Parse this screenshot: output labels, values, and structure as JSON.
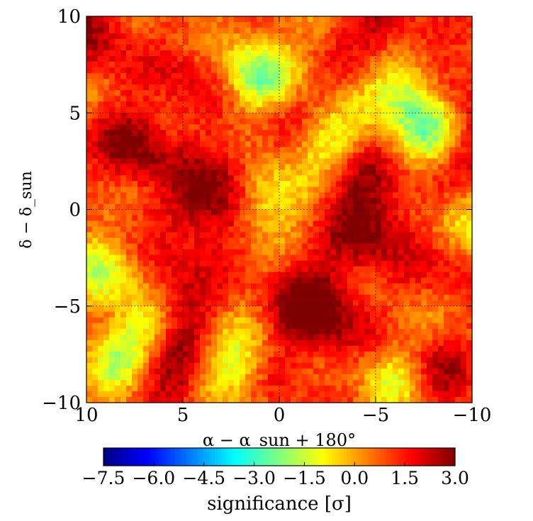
{
  "chart_data": [
    {
      "type": "heatmap",
      "title": "",
      "xlabel": "α − α_sun + 180°",
      "ylabel": "δ − δ_sun",
      "x_ticks": [
        10,
        5,
        0,
        -5,
        -10
      ],
      "y_ticks": [
        10,
        5,
        0,
        -5,
        -10
      ],
      "x_tick_labels": [
        "10",
        "5",
        "0",
        "−5",
        "−10"
      ],
      "y_tick_labels": [
        "10",
        "5",
        "0",
        "−5",
        "−10"
      ],
      "xlim": [
        10,
        -10
      ],
      "ylim": [
        -10,
        10
      ],
      "grid": true,
      "colormap": "jet",
      "color_range": [
        -7.5,
        3.0
      ],
      "hotspots": [
        {
          "x": 9.8,
          "y": 9.0,
          "value": 2.6
        },
        {
          "x": 7.5,
          "y": 3.2,
          "value": 3.0
        },
        {
          "x": 3.8,
          "y": 0.2,
          "value": 3.0
        },
        {
          "x": 2.2,
          "y": 1.9,
          "value": 2.1
        },
        {
          "x": 5.4,
          "y": -4.6,
          "value": 3.0
        },
        {
          "x": 5.6,
          "y": -8.2,
          "value": 2.9
        },
        {
          "x": 9.0,
          "y": -5.7,
          "value": 1.8
        },
        {
          "x": -4.8,
          "y": -1.1,
          "value": 3.0
        },
        {
          "x": -4.0,
          "y": 1.8,
          "value": 2.3
        },
        {
          "x": -2.4,
          "y": -5.7,
          "value": 2.6
        },
        {
          "x": -1.4,
          "y": -4.5,
          "value": 2.4
        },
        {
          "x": -5.3,
          "y": 9.2,
          "value": 2.4
        },
        {
          "x": -8.9,
          "y": 6.3,
          "value": 2.4
        },
        {
          "x": -9.6,
          "y": 2.6,
          "value": 2.1
        },
        {
          "x": -8.0,
          "y": -8.6,
          "value": 2.7
        },
        {
          "x": -1.0,
          "y": 4.8,
          "value": 1.7
        },
        {
          "x": 4.7,
          "y": 6.8,
          "value": 1.9
        },
        {
          "x": -9.2,
          "y": -2.3,
          "value": 2.1
        },
        {
          "x": 0.3,
          "y": -8.6,
          "value": 1.6
        }
      ],
      "coldspots": [
        {
          "x": 1.1,
          "y": 7.0,
          "value": -2.4
        },
        {
          "x": -7.8,
          "y": 4.4,
          "value": -2.6
        },
        {
          "x": 6.9,
          "y": -5.8,
          "value": -2.3
        },
        {
          "x": 0.8,
          "y": 0.8,
          "value": -2.0
        },
        {
          "x": -6.4,
          "y": 6.3,
          "value": -2.0
        },
        {
          "x": 2.3,
          "y": -8.0,
          "value": -1.9
        },
        {
          "x": 9.3,
          "y": -3.9,
          "value": -1.9
        },
        {
          "x": -2.5,
          "y": 3.5,
          "value": -1.8
        },
        {
          "x": -9.7,
          "y": -0.6,
          "value": -1.6
        },
        {
          "x": 8.6,
          "y": -8.0,
          "value": -1.7
        },
        {
          "x": -6.4,
          "y": -8.8,
          "value": -1.5
        }
      ]
    },
    {
      "type": "colorbar",
      "label": "significance [σ]",
      "colormap": "jet",
      "range": [
        -7.5,
        3.0
      ],
      "ticks": [
        -7.5,
        -6.0,
        -4.5,
        -3.0,
        -1.5,
        0.0,
        1.5,
        3.0
      ],
      "tick_labels": [
        "−7.5",
        "−6.0",
        "−4.5",
        "−3.0",
        "−1.5",
        "0.0",
        "1.5",
        "3.0"
      ]
    }
  ]
}
